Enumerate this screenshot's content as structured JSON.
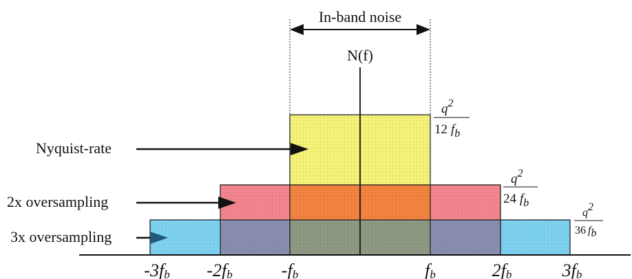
{
  "title": "In-band noise",
  "spectrum_label": "N(f)",
  "bands": [
    {
      "name": "3x oversampling",
      "color": "#7fd3f2",
      "from": -3,
      "to": 3,
      "level": {
        "num": "q",
        "exp": "2",
        "den": "36",
        "f": "f",
        "fsub": "b"
      }
    },
    {
      "name": "2x oversampling",
      "color": "#f5868e",
      "from": -2,
      "to": 2,
      "level": {
        "num": "q",
        "exp": "2",
        "den": "24",
        "f": "f",
        "fsub": "b"
      }
    },
    {
      "name": "Nyquist-rate",
      "color": "#f7f47a",
      "from": -1,
      "to": 1,
      "level": {
        "num": "q",
        "exp": "2",
        "den": "12",
        "f": "f",
        "fsub": "b"
      }
    }
  ],
  "overlap_colors": {
    "orange": "#f58440",
    "purple_grey": "#8a8fb0",
    "teal_grey": "#7aa0b4",
    "olive": "#9a9a70"
  },
  "axis_ticks": [
    {
      "pre": "-3",
      "f": "f",
      "sub": "b"
    },
    {
      "pre": "-2",
      "f": "f",
      "sub": "b"
    },
    {
      "pre": "-",
      "f": "f",
      "sub": "b"
    },
    {
      "pre": "",
      "f": "f",
      "sub": "b"
    },
    {
      "pre": "2",
      "f": "f",
      "sub": "b"
    },
    {
      "pre": "3",
      "f": "f",
      "sub": "b"
    }
  ]
}
